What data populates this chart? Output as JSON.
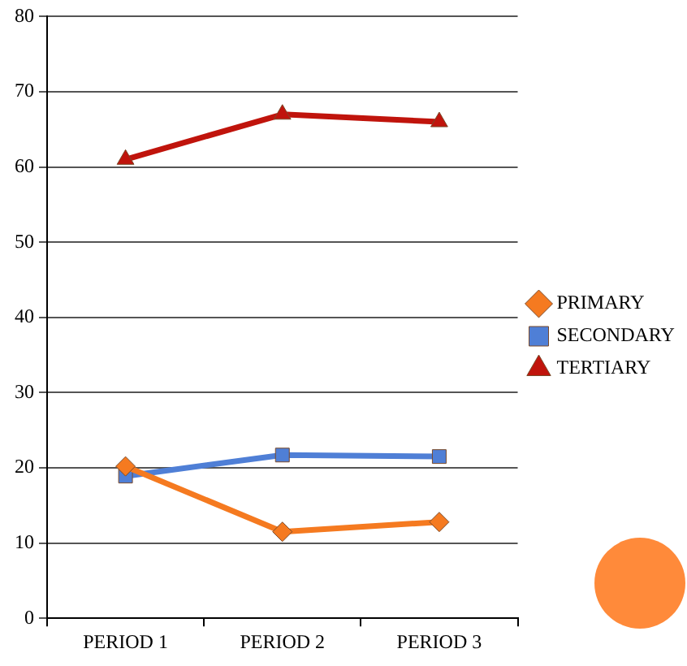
{
  "chart_data": {
    "type": "line",
    "categories": [
      "PERIOD 1",
      "PERIOD 2",
      "PERIOD 3"
    ],
    "series": [
      {
        "name": "PRIMARY",
        "color": "#f57a20",
        "marker": "diamond",
        "values": [
          20.2,
          11.5,
          12.8
        ]
      },
      {
        "name": "SECONDARY",
        "color": "#4f7fd6",
        "marker": "square",
        "values": [
          18.9,
          21.7,
          21.5
        ]
      },
      {
        "name": "TERTIARY",
        "color": "#c0140c",
        "marker": "triangle",
        "values": [
          61,
          67,
          66
        ]
      }
    ],
    "ylim": [
      0,
      80
    ],
    "yticks": [
      0,
      10,
      20,
      30,
      40,
      50,
      60,
      70,
      80
    ],
    "grid": "y",
    "legend": "right"
  }
}
